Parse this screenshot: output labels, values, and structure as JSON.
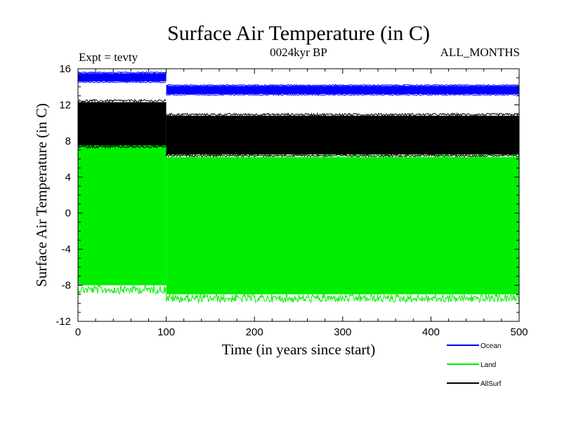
{
  "chart_data": {
    "type": "line",
    "title": "Surface Air Temperature (in C)",
    "subtitle_left": "Expt = tevty",
    "subtitle_center": "0024kyr BP",
    "subtitle_right": "ALL_MONTHS",
    "xlabel": "Time (in years since start)",
    "ylabel": "Surface Air Temperature (in C)",
    "xlim": [
      0,
      500
    ],
    "ylim": [
      -12,
      16
    ],
    "x_ticks": [
      0,
      100,
      200,
      300,
      400,
      500
    ],
    "y_ticks": [
      -12,
      -8,
      -4,
      0,
      4,
      8,
      12,
      16
    ],
    "x_tick_labels": [
      "0",
      "100",
      "200",
      "300",
      "400",
      "500"
    ],
    "y_tick_labels": [
      "-12",
      "-8",
      "-4",
      "0",
      "4",
      "8",
      "12",
      "16"
    ],
    "series": [
      {
        "name": "Land",
        "color": "#00ee00",
        "segments": [
          {
            "x": [
              0,
              100
            ],
            "low": -8.0,
            "high": 7.8
          },
          {
            "x": [
              100,
              500
            ],
            "low": -9.0,
            "high": 6.2
          }
        ]
      },
      {
        "name": "AllSurf",
        "color": "#000000",
        "segments": [
          {
            "x": [
              0,
              100
            ],
            "low": 7.5,
            "high": 12.3
          },
          {
            "x": [
              100,
              500
            ],
            "low": 6.5,
            "high": 10.8
          }
        ]
      },
      {
        "name": "Ocean",
        "color": "#0000ff",
        "segments": [
          {
            "x": [
              0,
              100
            ],
            "low": 14.6,
            "high": 15.5
          },
          {
            "x": [
              100,
              500
            ],
            "low": 13.2,
            "high": 14.1
          }
        ]
      }
    ],
    "legend": [
      {
        "name": "Ocean",
        "color": "#0000ff"
      },
      {
        "name": "Land",
        "color": "#00ee00"
      },
      {
        "name": "AllSurf",
        "color": "#000000"
      }
    ],
    "legend_position": "bottom-right"
  }
}
